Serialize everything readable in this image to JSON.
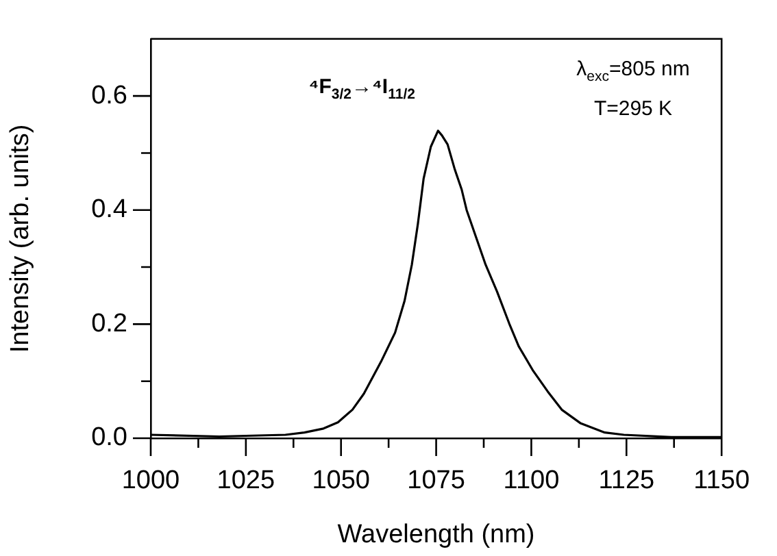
{
  "chart_data": {
    "type": "line",
    "xlabel": "Wavelength (nm)",
    "ylabel": "Intensity (arb. units)",
    "annotations": [
      "⁴F$_{3/2}$→⁴I$_{11/2}$",
      "λ$_{exc}$=805 nm",
      "T=295 K"
    ],
    "x": [
      1000,
      1018,
      1035.4,
      1040.4,
      1045.4,
      1049.2,
      1053,
      1056,
      1060.5,
      1064.2,
      1066.7,
      1068.6,
      1070.2,
      1071.7,
      1073.6,
      1075.5,
      1076.5,
      1078,
      1079.9,
      1081.7,
      1083,
      1085.5,
      1088,
      1091,
      1094.2,
      1096.7,
      1100.5,
      1104.3,
      1108,
      1113,
      1119.3,
      1124.3,
      1136.8,
      1150
    ],
    "series": [
      {
        "color": "#000000",
        "values": [
          0.006,
          0.003,
          0.006,
          0.01,
          0.017,
          0.028,
          0.05,
          0.078,
          0.134,
          0.185,
          0.241,
          0.304,
          0.376,
          0.455,
          0.511,
          0.539,
          0.531,
          0.515,
          0.471,
          0.436,
          0.4,
          0.352,
          0.304,
          0.257,
          0.201,
          0.161,
          0.118,
          0.082,
          0.05,
          0.026,
          0.01,
          0.006,
          0.002,
          0.002
        ]
      }
    ],
    "xlim": [
      1000,
      1150
    ],
    "xticks": [
      1000,
      {
        "value": 1012.5,
        "label": null
      },
      1025,
      {
        "value": 1037.5,
        "label": null
      },
      1050,
      {
        "value": 1062.5,
        "label": null
      },
      1075,
      {
        "value": 1087.5,
        "label": null
      },
      1100,
      {
        "value": 1112.5,
        "label": null
      },
      1125,
      {
        "value": 1137.5,
        "label": null
      },
      1150
    ],
    "ylim": [
      0,
      0.7
    ],
    "yticks": [
      {
        "value": 0,
        "label": "0.0"
      },
      {
        "value": 0.1,
        "label": null
      },
      {
        "value": 0.2,
        "label": "0.2"
      },
      {
        "value": 0.3,
        "label": null
      },
      {
        "value": 0.4,
        "label": "0.4"
      },
      {
        "value": 0.5,
        "label": null
      },
      {
        "value": 0.6,
        "label": "0.6"
      }
    ],
    "grid": false,
    "legend": false,
    "marker": "none",
    "line_style": "solid"
  }
}
